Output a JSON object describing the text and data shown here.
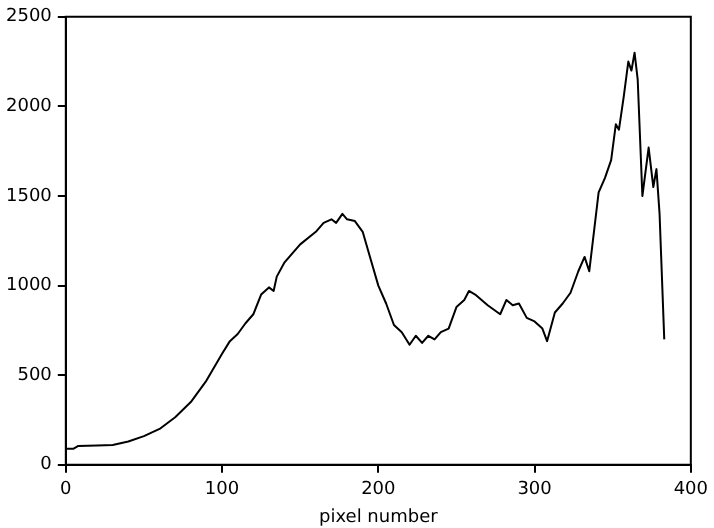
{
  "chart_data": {
    "type": "line",
    "xlabel": "pixel number",
    "marker": "none",
    "grid": false,
    "legend": false,
    "line_style": "solid",
    "xlim": [
      0,
      400
    ],
    "xticks": [
      0,
      100,
      200,
      300,
      400
    ],
    "ylim": [
      0,
      2500
    ],
    "yticks": [
      0,
      500,
      1000,
      1500,
      2000,
      2500
    ],
    "x": [
      0,
      5,
      8,
      20,
      30,
      40,
      50,
      60,
      70,
      80,
      90,
      100,
      105,
      110,
      115,
      120,
      125,
      130,
      133,
      135,
      140,
      150,
      160,
      165,
      170,
      173,
      177,
      180,
      185,
      190,
      195,
      200,
      205,
      210,
      215,
      220,
      224,
      228,
      232,
      236,
      240,
      245,
      250,
      255,
      258,
      262,
      270,
      278,
      282,
      286,
      290,
      295,
      300,
      305,
      308,
      313,
      318,
      323,
      328,
      332,
      335,
      338,
      341,
      345,
      349,
      352,
      354,
      357,
      360,
      362,
      364,
      366,
      369,
      373,
      376,
      378,
      380,
      383
    ],
    "series": [
      {
        "color": "#000000",
        "values": [
          90,
          90,
          105,
          108,
          110,
          130,
          160,
          200,
          265,
          350,
          470,
          620,
          690,
          730,
          790,
          840,
          950,
          990,
          970,
          1050,
          1130,
          1230,
          1300,
          1350,
          1370,
          1350,
          1400,
          1370,
          1360,
          1300,
          1150,
          1000,
          900,
          780,
          740,
          670,
          720,
          680,
          720,
          700,
          740,
          760,
          880,
          920,
          970,
          950,
          890,
          840,
          920,
          890,
          900,
          820,
          800,
          760,
          690,
          850,
          900,
          960,
          1080,
          1160,
          1080,
          1300,
          1520,
          1600,
          1700,
          1900,
          1870,
          2050,
          2250,
          2200,
          2300,
          2150,
          1500,
          1770,
          1550,
          1650,
          1400,
          700
        ]
      }
    ]
  }
}
